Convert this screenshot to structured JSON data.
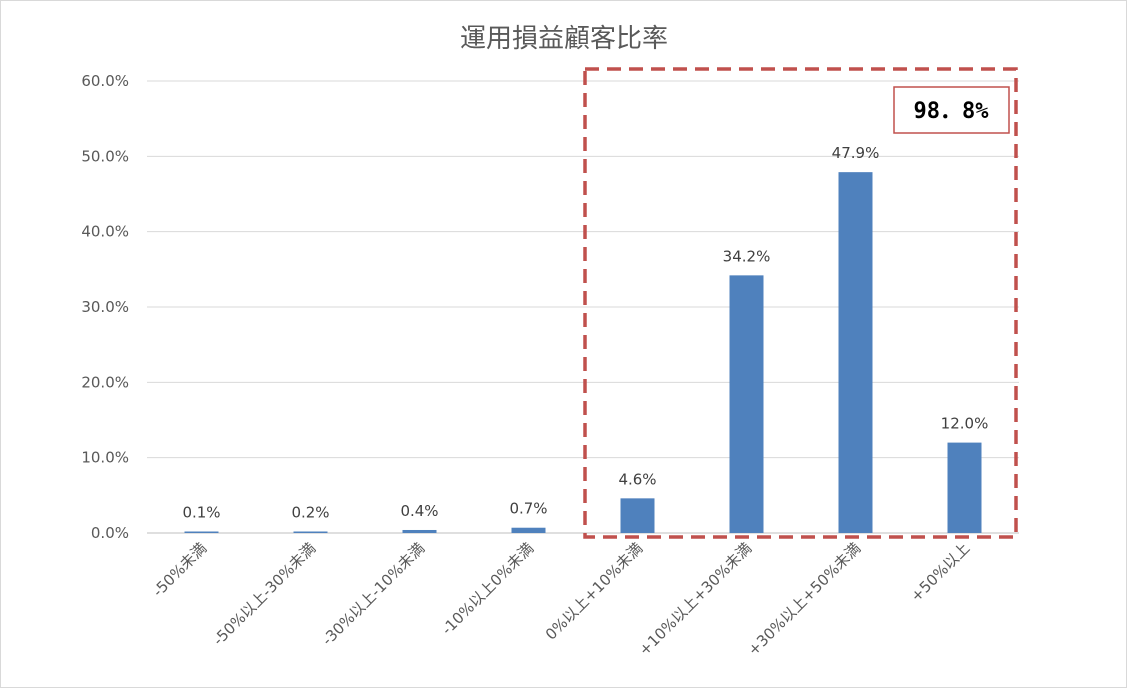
{
  "chart_data": {
    "type": "bar",
    "title": "運用損益顧客比率",
    "xlabel": "",
    "ylabel": "",
    "categories": [
      "-50%未満",
      "-50%以上-30%未満",
      "-30%以上-10%未満",
      "-10%以上0%未満",
      "0%以上+10%未満",
      "+10%以上+30%未満",
      "+30%以上+50%未満",
      "+50%以上"
    ],
    "values": [
      0.1,
      0.2,
      0.4,
      0.7,
      4.6,
      34.2,
      47.9,
      12.0
    ],
    "data_labels": [
      "0.1%",
      "0.2%",
      "0.4%",
      "0.7%",
      "4.6%",
      "34.2%",
      "47.9%",
      "12.0%"
    ],
    "ylim": [
      0,
      60
    ],
    "yticks": [
      0,
      10,
      20,
      30,
      40,
      50,
      60
    ],
    "ytick_labels": [
      "0.0%",
      "10.0%",
      "20.0%",
      "30.0%",
      "40.0%",
      "50.0%",
      "60.0%"
    ],
    "grid": true,
    "legend": "none",
    "bar_color": "#4f81bd",
    "highlight": {
      "categories": [
        "0%以上+10%未満",
        "+10%以上+30%未満",
        "+30%以上+50%未満",
        "+50%以上"
      ],
      "label": "98．8%",
      "box_color": "#c0504d"
    }
  }
}
